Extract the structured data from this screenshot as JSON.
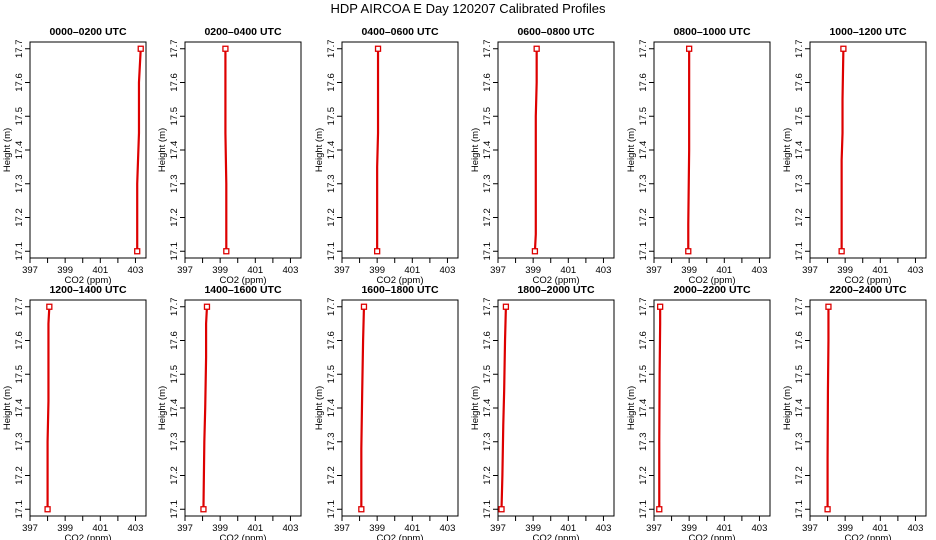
{
  "figure": {
    "title": "HDP AIRCOA E  Day 120207  Calibrated Profiles"
  },
  "style": {
    "line_color": "#dd0000",
    "marker_color": "#dd0000",
    "axis_color": "#000000"
  },
  "chart_data": [
    {
      "type": "line",
      "title": "0000–0200 UTC",
      "xlabel": "CO2 (ppm)",
      "ylabel": "Height (m)",
      "xlim": [
        397,
        403.6
      ],
      "ylim": [
        17.08,
        17.72
      ],
      "xticks": [
        397,
        399,
        401,
        403
      ],
      "yticks": [
        17.1,
        17.2,
        17.3,
        17.4,
        17.5,
        17.6,
        17.7
      ],
      "series": [
        {
          "x": [
            403.1,
            403.1,
            403.2,
            403.2,
            403.3
          ],
          "y": [
            17.1,
            17.3,
            17.45,
            17.6,
            17.7
          ]
        }
      ],
      "markers": [
        {
          "x": 403.1,
          "y": 17.1
        },
        {
          "x": 403.3,
          "y": 17.7
        }
      ]
    },
    {
      "type": "line",
      "title": "0200–0400 UTC",
      "xlabel": "CO2 (ppm)",
      "ylabel": "Height (m)",
      "xlim": [
        397,
        403.6
      ],
      "ylim": [
        17.08,
        17.72
      ],
      "xticks": [
        397,
        399,
        401,
        403
      ],
      "yticks": [
        17.1,
        17.2,
        17.3,
        17.4,
        17.5,
        17.6,
        17.7
      ],
      "series": [
        {
          "x": [
            399.35,
            399.35,
            399.3,
            399.3,
            399.3
          ],
          "y": [
            17.1,
            17.3,
            17.45,
            17.6,
            17.7
          ]
        }
      ],
      "markers": [
        {
          "x": 399.35,
          "y": 17.1
        },
        {
          "x": 399.3,
          "y": 17.7
        }
      ]
    },
    {
      "type": "line",
      "title": "0400–0600 UTC",
      "xlabel": "CO2 (ppm)",
      "ylabel": "Height (m)",
      "xlim": [
        397,
        403.6
      ],
      "ylim": [
        17.08,
        17.72
      ],
      "xticks": [
        397,
        399,
        401,
        403
      ],
      "yticks": [
        17.1,
        17.2,
        17.3,
        17.4,
        17.5,
        17.6,
        17.7
      ],
      "series": [
        {
          "x": [
            399.0,
            399.0,
            399.05,
            399.05,
            399.05
          ],
          "y": [
            17.1,
            17.35,
            17.45,
            17.6,
            17.7
          ]
        }
      ],
      "markers": [
        {
          "x": 399.0,
          "y": 17.1
        },
        {
          "x": 399.05,
          "y": 17.7
        }
      ]
    },
    {
      "type": "line",
      "title": "0600–0800 UTC",
      "xlabel": "CO2 (ppm)",
      "ylabel": "Height (m)",
      "xlim": [
        397,
        403.6
      ],
      "ylim": [
        17.08,
        17.72
      ],
      "xticks": [
        397,
        399,
        401,
        403
      ],
      "yticks": [
        17.1,
        17.2,
        17.3,
        17.4,
        17.5,
        17.6,
        17.7
      ],
      "series": [
        {
          "x": [
            399.1,
            399.15,
            399.15,
            399.2,
            399.2
          ],
          "y": [
            17.1,
            17.15,
            17.5,
            17.6,
            17.7
          ]
        }
      ],
      "markers": [
        {
          "x": 399.1,
          "y": 17.1
        },
        {
          "x": 399.2,
          "y": 17.7
        }
      ]
    },
    {
      "type": "line",
      "title": "0800–1000 UTC",
      "xlabel": "CO2 (ppm)",
      "ylabel": "Height (m)",
      "xlim": [
        397,
        403.6
      ],
      "ylim": [
        17.08,
        17.72
      ],
      "xticks": [
        397,
        399,
        401,
        403
      ],
      "yticks": [
        17.1,
        17.2,
        17.3,
        17.4,
        17.5,
        17.6,
        17.7
      ],
      "series": [
        {
          "x": [
            398.95,
            398.95,
            399.0,
            399.0,
            399.0
          ],
          "y": [
            17.1,
            17.18,
            17.4,
            17.6,
            17.7
          ]
        }
      ],
      "markers": [
        {
          "x": 398.95,
          "y": 17.1
        },
        {
          "x": 399.0,
          "y": 17.7
        }
      ]
    },
    {
      "type": "line",
      "title": "1000–1200 UTC",
      "xlabel": "CO2 (ppm)",
      "ylabel": "Height (m)",
      "xlim": [
        397,
        403.6
      ],
      "ylim": [
        17.08,
        17.72
      ],
      "xticks": [
        397,
        399,
        401,
        403
      ],
      "yticks": [
        17.1,
        17.2,
        17.3,
        17.4,
        17.5,
        17.6,
        17.7
      ],
      "series": [
        {
          "x": [
            398.8,
            398.8,
            398.85,
            398.85,
            398.9
          ],
          "y": [
            17.1,
            17.37,
            17.45,
            17.55,
            17.7
          ]
        }
      ],
      "markers": [
        {
          "x": 398.8,
          "y": 17.1
        },
        {
          "x": 398.9,
          "y": 17.7
        }
      ]
    },
    {
      "type": "line",
      "title": "1200–1400 UTC",
      "xlabel": "CO2 (ppm)",
      "ylabel": "Height (m)",
      "xlim": [
        397,
        403.6
      ],
      "ylim": [
        17.08,
        17.72
      ],
      "xticks": [
        397,
        399,
        401,
        403
      ],
      "yticks": [
        17.1,
        17.2,
        17.3,
        17.4,
        17.5,
        17.6,
        17.7
      ],
      "series": [
        {
          "x": [
            398.0,
            398.0,
            398.05,
            398.05,
            398.1
          ],
          "y": [
            17.1,
            17.3,
            17.42,
            17.65,
            17.7
          ]
        }
      ],
      "markers": [
        {
          "x": 398.0,
          "y": 17.1
        },
        {
          "x": 398.1,
          "y": 17.7
        }
      ]
    },
    {
      "type": "line",
      "title": "1400–1600 UTC",
      "xlabel": "CO2 (ppm)",
      "ylabel": "Height (m)",
      "xlim": [
        397,
        403.6
      ],
      "ylim": [
        17.08,
        17.72
      ],
      "xticks": [
        397,
        399,
        401,
        403
      ],
      "yticks": [
        17.1,
        17.2,
        17.3,
        17.4,
        17.5,
        17.6,
        17.7
      ],
      "series": [
        {
          "x": [
            398.05,
            398.1,
            398.15,
            398.2,
            398.2,
            398.25
          ],
          "y": [
            17.1,
            17.3,
            17.4,
            17.55,
            17.65,
            17.7
          ]
        }
      ],
      "markers": [
        {
          "x": 398.05,
          "y": 17.1
        },
        {
          "x": 398.25,
          "y": 17.7
        }
      ]
    },
    {
      "type": "line",
      "title": "1600–1800 UTC",
      "xlabel": "CO2 (ppm)",
      "ylabel": "Height (m)",
      "xlim": [
        397,
        403.6
      ],
      "ylim": [
        17.08,
        17.72
      ],
      "xticks": [
        397,
        399,
        401,
        403
      ],
      "yticks": [
        17.1,
        17.2,
        17.3,
        17.4,
        17.5,
        17.6,
        17.7
      ],
      "series": [
        {
          "x": [
            398.1,
            398.1,
            398.15,
            398.2,
            398.25
          ],
          "y": [
            17.1,
            17.28,
            17.45,
            17.6,
            17.7
          ]
        }
      ],
      "markers": [
        {
          "x": 398.1,
          "y": 17.1
        },
        {
          "x": 398.25,
          "y": 17.7
        }
      ]
    },
    {
      "type": "line",
      "title": "1800–2000 UTC",
      "xlabel": "CO2 (ppm)",
      "ylabel": "Height (m)",
      "xlim": [
        397,
        403.6
      ],
      "ylim": [
        17.08,
        17.72
      ],
      "xticks": [
        397,
        399,
        401,
        403
      ],
      "yticks": [
        17.1,
        17.2,
        17.3,
        17.4,
        17.5,
        17.6,
        17.7
      ],
      "series": [
        {
          "x": [
            397.2,
            397.25,
            397.3,
            397.35,
            397.4,
            397.45
          ],
          "y": [
            17.1,
            17.2,
            17.35,
            17.45,
            17.6,
            17.7
          ]
        }
      ],
      "markers": [
        {
          "x": 397.2,
          "y": 17.1
        },
        {
          "x": 397.45,
          "y": 17.7
        }
      ]
    },
    {
      "type": "line",
      "title": "2000–2200 UTC",
      "xlabel": "CO2 (ppm)",
      "ylabel": "Height (m)",
      "xlim": [
        397,
        403.6
      ],
      "ylim": [
        17.08,
        17.72
      ],
      "xticks": [
        397,
        399,
        401,
        403
      ],
      "yticks": [
        17.1,
        17.2,
        17.3,
        17.4,
        17.5,
        17.6,
        17.7
      ],
      "series": [
        {
          "x": [
            397.3,
            397.3,
            397.32,
            397.35,
            397.35
          ],
          "y": [
            17.1,
            17.3,
            17.5,
            17.65,
            17.7
          ]
        }
      ],
      "markers": [
        {
          "x": 397.3,
          "y": 17.1
        },
        {
          "x": 397.35,
          "y": 17.7
        }
      ]
    },
    {
      "type": "line",
      "title": "2200–2400 UTC",
      "xlabel": "CO2 (ppm)",
      "ylabel": "Height (m)",
      "xlim": [
        397,
        403.6
      ],
      "ylim": [
        17.08,
        17.72
      ],
      "xticks": [
        397,
        399,
        401,
        403
      ],
      "yticks": [
        17.1,
        17.2,
        17.3,
        17.4,
        17.5,
        17.6,
        17.7
      ],
      "series": [
        {
          "x": [
            398.0,
            398.0,
            398.02,
            398.05,
            398.05
          ],
          "y": [
            17.1,
            17.25,
            17.45,
            17.6,
            17.7
          ]
        }
      ],
      "markers": [
        {
          "x": 398.0,
          "y": 17.1
        },
        {
          "x": 398.05,
          "y": 17.7
        }
      ]
    }
  ]
}
